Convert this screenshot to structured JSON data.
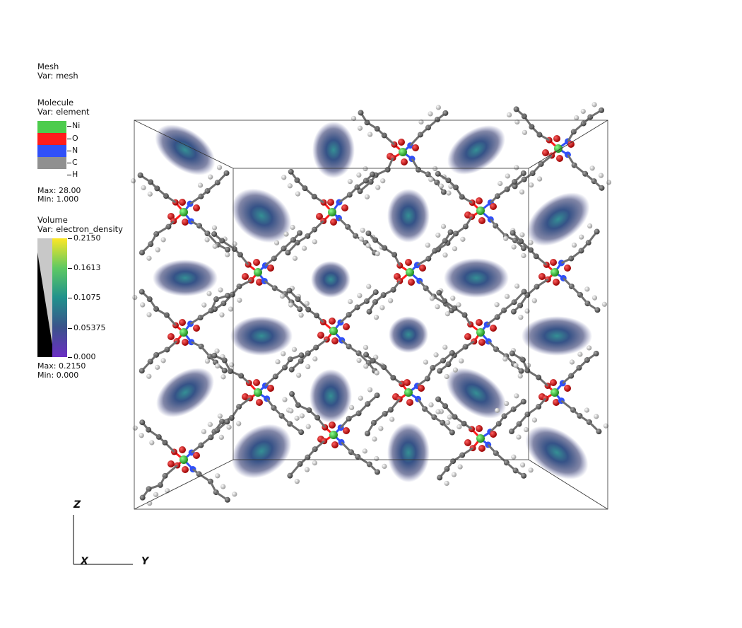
{
  "mesh_legend": {
    "title": "Mesh",
    "var": "Var: mesh"
  },
  "molecule_legend": {
    "title": "Molecule",
    "var": "Var: element",
    "items": [
      {
        "label": "Ni",
        "color": "#4ccc4c"
      },
      {
        "label": "O",
        "color": "#ff1c1c"
      },
      {
        "label": "N",
        "color": "#3050f8"
      },
      {
        "label": "C",
        "color": "#909090"
      },
      {
        "label": "H",
        "color": "#ffffff"
      }
    ],
    "max": "Max:  28.00",
    "min": "Min:  1.000"
  },
  "volume_legend": {
    "title": "Volume",
    "var": "Var: electron_density",
    "ticks": [
      "0.2150",
      "0.1613",
      "0.1075",
      "0.05375",
      "0.000"
    ],
    "max": "Max:  0.2150",
    "min": "Min:  0.000"
  },
  "axes": {
    "z": "Z",
    "x": "X",
    "y": "Y"
  }
}
